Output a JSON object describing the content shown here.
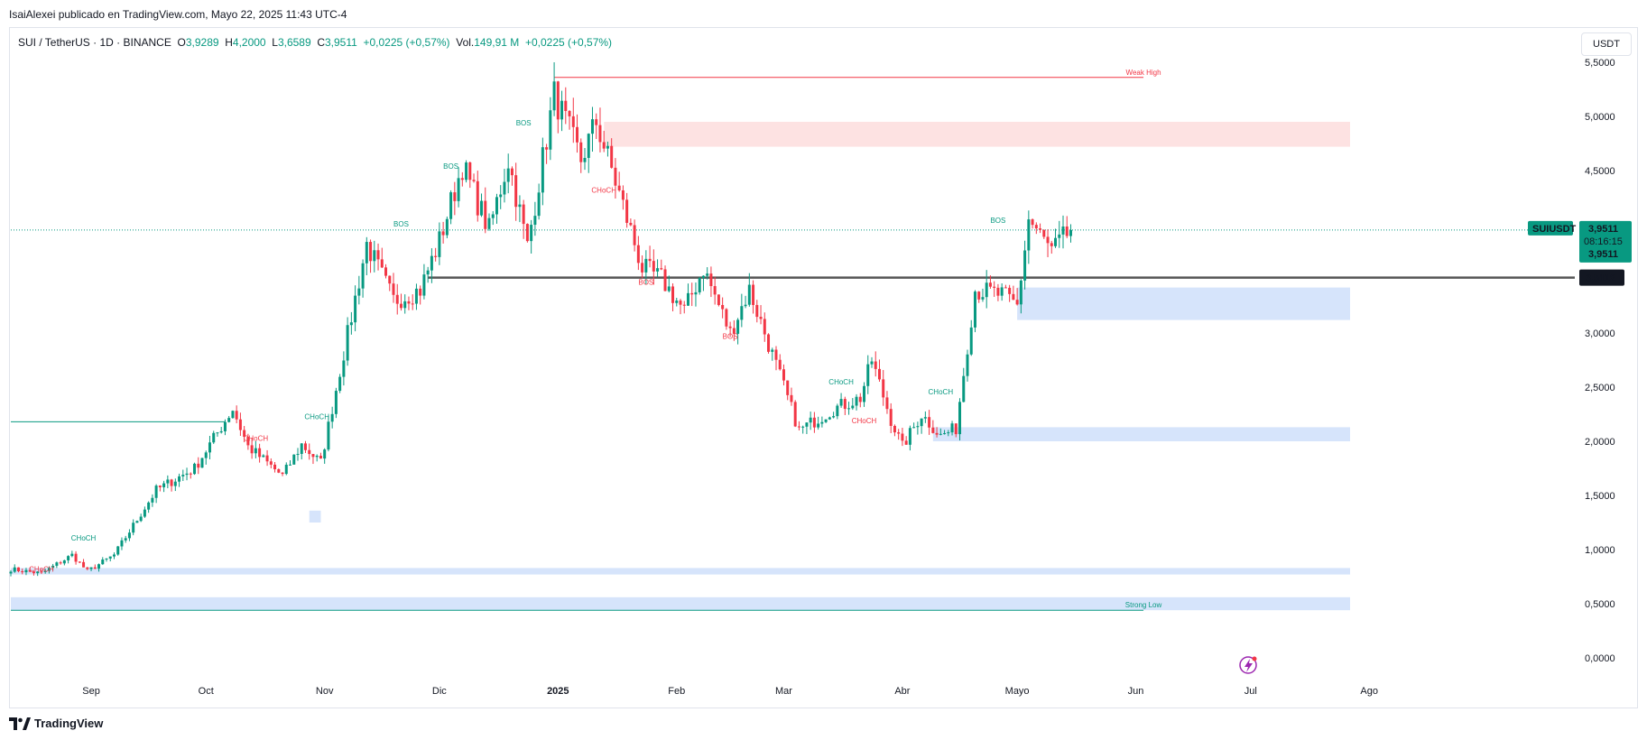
{
  "header": {
    "publisher_text": "IsaiAlexei publicado en TradingView.com, Mayo 22, 2025 11:43 UTC-4"
  },
  "legend": {
    "symbol": "SUI / TetherUS · 1D · BINANCE",
    "o_label": "O",
    "o_value": "3,9289",
    "h_label": "H",
    "h_value": "4,2000",
    "l_label": "L",
    "l_value": "3,6589",
    "c_label": "C",
    "c_value": "3,9511",
    "change": "+0,0225 (+0,57%)",
    "vol_label": "Vol.",
    "vol_value": "149,91 M",
    "vol_change": "+0,0225 (+0,57%)"
  },
  "currency_button": "USDT",
  "footer": {
    "brand": "TradingView"
  },
  "colors": {
    "up": "#089981",
    "down": "#f23645",
    "zone_blue": "#d6e4fb",
    "zone_red": "#fde2e2",
    "level_gray": "#555555",
    "weak_high": "#f23645",
    "strong_low": "#089981",
    "badge_price": "#089981",
    "badge_dark": "#131722"
  },
  "chart_data": {
    "type": "candlestick",
    "ylim": [
      0,
      5.6
    ],
    "y_ticks": [
      "5,5000",
      "5,0000",
      "4,5000",
      "4,0000",
      "3,5000",
      "3,0000",
      "2,5000",
      "2,0000",
      "1,5000",
      "1,0000",
      "0,5000",
      "0,0000"
    ],
    "x_ticks": [
      "Sep",
      "Oct",
      "Nov",
      "Dic",
      "2025",
      "Feb",
      "Mar",
      "Abr",
      "Mayo",
      "Jun",
      "Jul",
      "Ago"
    ],
    "x_ticks_day_index": [
      21,
      51,
      82,
      112,
      143,
      174,
      202,
      233,
      263,
      294,
      324,
      355
    ],
    "last_price": "3,9511",
    "countdown": "08:16:15",
    "symbol_badge": "SUIUSDT",
    "level_price": "3,5112",
    "level_value": 3.5112,
    "annotations": [
      {
        "text": "Weak High",
        "color": "red",
        "day": 296,
        "price": 5.36
      },
      {
        "text": "Strong Low",
        "color": "green",
        "day": 296,
        "price": 0.44
      },
      {
        "text": "CHoCH",
        "color": "green",
        "day": 19,
        "price": 1.06
      },
      {
        "text": "CHoCH",
        "color": "red",
        "day": 8,
        "price": 0.77
      },
      {
        "text": "CHoCH",
        "color": "red",
        "day": 64,
        "price": 1.98
      },
      {
        "text": "CHoCH",
        "color": "green",
        "day": 80,
        "price": 2.18
      },
      {
        "text": "BOS",
        "color": "green",
        "day": 102,
        "price": 3.96
      },
      {
        "text": "BOS",
        "color": "green",
        "day": 115,
        "price": 4.49
      },
      {
        "text": "BOS",
        "color": "green",
        "day": 134,
        "price": 4.89
      },
      {
        "text": "CHoCH",
        "color": "red",
        "day": 155,
        "price": 4.27
      },
      {
        "text": "BOS",
        "color": "red",
        "day": 166,
        "price": 3.42
      },
      {
        "text": "BOS",
        "color": "red",
        "day": 188,
        "price": 2.92
      },
      {
        "text": "CHoCH",
        "color": "green",
        "day": 217,
        "price": 2.5
      },
      {
        "text": "CHoCH",
        "color": "red",
        "day": 223,
        "price": 2.14
      },
      {
        "text": "CHoCH",
        "color": "green",
        "day": 243,
        "price": 2.41
      },
      {
        "text": "BOS",
        "color": "green",
        "day": 258,
        "price": 3.99
      }
    ],
    "zones": [
      {
        "kind": "red",
        "from_day": 155,
        "to_day": 350,
        "low": 4.72,
        "high": 4.95
      },
      {
        "kind": "blue",
        "from_day": 263,
        "to_day": 350,
        "low": 3.12,
        "high": 3.42
      },
      {
        "kind": "blue",
        "from_day": 241,
        "to_day": 350,
        "low": 2.0,
        "high": 2.13
      },
      {
        "kind": "blue",
        "from_day": 0,
        "to_day": 350,
        "low": 0.77,
        "high": 0.83
      },
      {
        "kind": "blue",
        "from_day": 0,
        "to_day": 350,
        "low": 0.44,
        "high": 0.56
      },
      {
        "kind": "blue",
        "from_day": 78,
        "to_day": 81,
        "low": 1.25,
        "high": 1.36
      }
    ],
    "lines": [
      {
        "kind": "weak_high",
        "from_day": 142,
        "to_day": 296,
        "price": 5.36
      },
      {
        "kind": "strong_low",
        "from_day": 0,
        "to_day": 296,
        "price": 0.44
      },
      {
        "kind": "green",
        "from_day": 0,
        "to_day": 56,
        "price": 2.18
      },
      {
        "kind": "level",
        "from_day": 109,
        "to_day": 350,
        "price": 3.5112
      }
    ],
    "swings": [
      {
        "day": 0,
        "price": 0.82
      },
      {
        "day": 8,
        "price": 0.78
      },
      {
        "day": 16,
        "price": 0.95
      },
      {
        "day": 20,
        "price": 0.8
      },
      {
        "day": 27,
        "price": 0.95
      },
      {
        "day": 38,
        "price": 1.55
      },
      {
        "day": 48,
        "price": 1.75
      },
      {
        "day": 58,
        "price": 2.3
      },
      {
        "day": 62,
        "price": 1.95
      },
      {
        "day": 71,
        "price": 1.68
      },
      {
        "day": 76,
        "price": 1.97
      },
      {
        "day": 81,
        "price": 1.8
      },
      {
        "day": 86,
        "price": 2.65
      },
      {
        "day": 93,
        "price": 3.82
      },
      {
        "day": 100,
        "price": 3.3
      },
      {
        "day": 107,
        "price": 3.4
      },
      {
        "day": 112,
        "price": 3.85
      },
      {
        "day": 118,
        "price": 4.55
      },
      {
        "day": 125,
        "price": 3.95
      },
      {
        "day": 130,
        "price": 4.6
      },
      {
        "day": 135,
        "price": 3.8
      },
      {
        "day": 142,
        "price": 5.2
      },
      {
        "day": 149,
        "price": 4.6
      },
      {
        "day": 153,
        "price": 4.95
      },
      {
        "day": 158,
        "price": 4.4
      },
      {
        "day": 165,
        "price": 3.6
      },
      {
        "day": 170,
        "price": 3.5
      },
      {
        "day": 176,
        "price": 3.2
      },
      {
        "day": 181,
        "price": 3.6
      },
      {
        "day": 188,
        "price": 3.0
      },
      {
        "day": 193,
        "price": 3.4
      },
      {
        "day": 200,
        "price": 2.7
      },
      {
        "day": 206,
        "price": 2.1
      },
      {
        "day": 215,
        "price": 2.3
      },
      {
        "day": 222,
        "price": 2.4
      },
      {
        "day": 225,
        "price": 2.75
      },
      {
        "day": 230,
        "price": 2.2
      },
      {
        "day": 233,
        "price": 1.95
      },
      {
        "day": 238,
        "price": 2.25
      },
      {
        "day": 243,
        "price": 2.05
      },
      {
        "day": 247,
        "price": 2.12
      },
      {
        "day": 252,
        "price": 3.4
      },
      {
        "day": 259,
        "price": 3.35
      },
      {
        "day": 263,
        "price": 3.25
      },
      {
        "day": 266,
        "price": 4.05
      },
      {
        "day": 272,
        "price": 3.75
      },
      {
        "day": 277,
        "price": 3.95
      }
    ]
  }
}
